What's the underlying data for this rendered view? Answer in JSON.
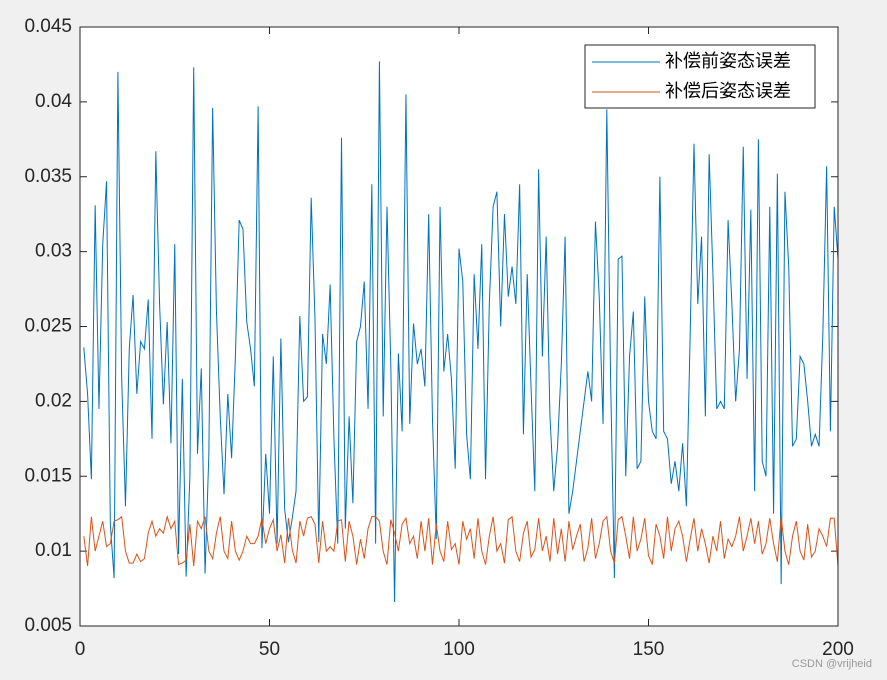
{
  "chart_data": {
    "type": "line",
    "x": [
      1,
      2,
      3,
      4,
      5,
      6,
      7,
      8,
      9,
      10,
      11,
      12,
      13,
      14,
      15,
      16,
      17,
      18,
      19,
      20,
      21,
      22,
      23,
      24,
      25,
      26,
      27,
      28,
      29,
      30,
      31,
      32,
      33,
      34,
      35,
      36,
      37,
      38,
      39,
      40,
      41,
      42,
      43,
      44,
      45,
      46,
      47,
      48,
      49,
      50,
      51,
      52,
      53,
      54,
      55,
      56,
      57,
      58,
      59,
      60,
      61,
      62,
      63,
      64,
      65,
      66,
      67,
      68,
      69,
      70,
      71,
      72,
      73,
      74,
      75,
      76,
      77,
      78,
      79,
      80,
      81,
      82,
      83,
      84,
      85,
      86,
      87,
      88,
      89,
      90,
      91,
      92,
      93,
      94,
      95,
      96,
      97,
      98,
      99,
      100,
      101,
      102,
      103,
      104,
      105,
      106,
      107,
      108,
      109,
      110,
      111,
      112,
      113,
      114,
      115,
      116,
      117,
      118,
      119,
      120,
      121,
      122,
      123,
      124,
      125,
      126,
      127,
      128,
      129,
      130,
      131,
      132,
      133,
      134,
      135,
      136,
      137,
      138,
      139,
      140,
      141,
      142,
      143,
      144,
      145,
      146,
      147,
      148,
      149,
      150,
      151,
      152,
      153,
      154,
      155,
      156,
      157,
      158,
      159,
      160,
      161,
      162,
      163,
      164,
      165,
      166,
      167,
      168,
      169,
      170,
      171,
      172,
      173,
      174,
      175,
      176,
      177,
      178,
      179,
      180,
      181,
      182,
      183,
      184,
      185,
      186,
      187,
      188,
      189,
      190,
      191,
      192,
      193,
      194,
      195,
      196,
      197,
      198,
      199,
      200
    ],
    "series": [
      {
        "name": "补偿前姿态误差",
        "color": "#0072bd",
        "values": [
          0.0236,
          0.0205,
          0.0148,
          0.0331,
          0.0195,
          0.0305,
          0.0347,
          0.0118,
          0.0082,
          0.042,
          0.0215,
          0.013,
          0.0235,
          0.0271,
          0.0205,
          0.024,
          0.0235,
          0.0268,
          0.0175,
          0.0367,
          0.0265,
          0.0198,
          0.0253,
          0.0172,
          0.0305,
          0.0098,
          0.0215,
          0.0083,
          0.015,
          0.0423,
          0.0165,
          0.0222,
          0.0085,
          0.0165,
          0.0396,
          0.026,
          0.019,
          0.0138,
          0.0205,
          0.0162,
          0.023,
          0.0321,
          0.0315,
          0.0253,
          0.0235,
          0.021,
          0.0397,
          0.0102,
          0.0165,
          0.0125,
          0.023,
          0.0105,
          0.0242,
          0.0128,
          0.0106,
          0.0122,
          0.014,
          0.0257,
          0.02,
          0.0203,
          0.0336,
          0.0255,
          0.0106,
          0.0245,
          0.0225,
          0.0278,
          0.0175,
          0.0105,
          0.0376,
          0.0115,
          0.019,
          0.0132,
          0.024,
          0.025,
          0.028,
          0.0195,
          0.0345,
          0.0105,
          0.0427,
          0.019,
          0.033,
          0.0225,
          0.0066,
          0.0232,
          0.018,
          0.0405,
          0.0185,
          0.0252,
          0.0225,
          0.0235,
          0.021,
          0.0325,
          0.0188,
          0.0108,
          0.033,
          0.022,
          0.0245,
          0.0215,
          0.0155,
          0.0302,
          0.028,
          0.0178,
          0.0148,
          0.0285,
          0.0235,
          0.0305,
          0.0148,
          0.0265,
          0.033,
          0.034,
          0.025,
          0.0325,
          0.027,
          0.029,
          0.0265,
          0.0345,
          0.0178,
          0.0285,
          0.021,
          0.014,
          0.0355,
          0.023,
          0.031,
          0.019,
          0.014,
          0.017,
          0.0225,
          0.031,
          0.0125,
          0.014,
          0.016,
          0.018,
          0.02,
          0.022,
          0.02,
          0.032,
          0.027,
          0.0185,
          0.0395,
          0.0215,
          0.0082,
          0.0295,
          0.0297,
          0.015,
          0.023,
          0.026,
          0.0155,
          0.016,
          0.027,
          0.02,
          0.018,
          0.0175,
          0.035,
          0.018,
          0.0175,
          0.0145,
          0.016,
          0.014,
          0.0172,
          0.013,
          0.0245,
          0.0372,
          0.0265,
          0.031,
          0.019,
          0.0365,
          0.0285,
          0.0195,
          0.02,
          0.0195,
          0.0321,
          0.0265,
          0.02,
          0.0235,
          0.037,
          0.0215,
          0.0328,
          0.014,
          0.0375,
          0.016,
          0.015,
          0.033,
          0.0125,
          0.0352,
          0.0078,
          0.034,
          0.029,
          0.017,
          0.0175,
          0.023,
          0.0225,
          0.02,
          0.017,
          0.0178,
          0.017,
          0.0245,
          0.0357,
          0.018,
          0.033,
          0.0295
        ]
      },
      {
        "name": "补偿后姿态误差",
        "color": "#d95319",
        "values": [
          0.011,
          0.009,
          0.0123,
          0.01,
          0.011,
          0.012,
          0.0103,
          0.0105,
          0.012,
          0.0121,
          0.0123,
          0.01,
          0.0092,
          0.0092,
          0.0098,
          0.0093,
          0.0095,
          0.0112,
          0.012,
          0.011,
          0.0115,
          0.0112,
          0.0123,
          0.0115,
          0.012,
          0.0091,
          0.0092,
          0.0094,
          0.0118,
          0.009,
          0.012,
          0.0115,
          0.0123,
          0.01,
          0.0095,
          0.0112,
          0.0123,
          0.01,
          0.0095,
          0.012,
          0.01,
          0.0094,
          0.01,
          0.011,
          0.0105,
          0.0105,
          0.011,
          0.0122,
          0.0105,
          0.0115,
          0.0121,
          0.01,
          0.0111,
          0.0092,
          0.0122,
          0.0101,
          0.0092,
          0.012,
          0.011,
          0.0122,
          0.0123,
          0.0118,
          0.0092,
          0.012,
          0.01,
          0.0103,
          0.01,
          0.012,
          0.0121,
          0.0093,
          0.012,
          0.011,
          0.0091,
          0.0108,
          0.0095,
          0.0115,
          0.0123,
          0.0123,
          0.012,
          0.01,
          0.0091,
          0.0121,
          0.0112,
          0.01,
          0.0118,
          0.0122,
          0.0105,
          0.011,
          0.0095,
          0.012,
          0.01,
          0.0122,
          0.0091,
          0.0118,
          0.01,
          0.0093,
          0.012,
          0.0101,
          0.0105,
          0.0091,
          0.012,
          0.0108,
          0.0115,
          0.0095,
          0.0122,
          0.01,
          0.0091,
          0.011,
          0.0123,
          0.01,
          0.0105,
          0.0092,
          0.0121,
          0.0123,
          0.01,
          0.0093,
          0.0112,
          0.012,
          0.0096,
          0.0101,
          0.0122,
          0.01,
          0.011,
          0.0093,
          0.0122,
          0.0098,
          0.0115,
          0.0093,
          0.012,
          0.0101,
          0.011,
          0.0118,
          0.0093,
          0.0102,
          0.0122,
          0.0095,
          0.0105,
          0.012,
          0.0123,
          0.01,
          0.0092,
          0.0121,
          0.0123,
          0.011,
          0.0095,
          0.0123,
          0.01,
          0.0108,
          0.0122,
          0.0097,
          0.0091,
          0.0118,
          0.011,
          0.0095,
          0.0123,
          0.01,
          0.0115,
          0.012,
          0.011,
          0.0093,
          0.0108,
          0.0122,
          0.01,
          0.0115,
          0.0105,
          0.0092,
          0.011,
          0.01,
          0.012,
          0.0095,
          0.0108,
          0.0103,
          0.011,
          0.0123,
          0.01,
          0.011,
          0.0122,
          0.0105,
          0.012,
          0.0098,
          0.0105,
          0.0122,
          0.0105,
          0.0093,
          0.0123,
          0.01,
          0.0091,
          0.011,
          0.012,
          0.01,
          0.0094,
          0.0118,
          0.0096,
          0.01,
          0.0115,
          0.011,
          0.0103,
          0.0122,
          0.0122,
          0.009
        ]
      }
    ],
    "xlim": [
      0,
      200
    ],
    "xticks": [
      0,
      50,
      100,
      150,
      200
    ],
    "ylim": [
      0.005,
      0.045
    ],
    "yticks": [
      0.005,
      0.01,
      0.015,
      0.02,
      0.025,
      0.03,
      0.035,
      0.04,
      0.045
    ],
    "legend": "northeast",
    "grid": false
  },
  "watermark": "CSDN @vrijheid"
}
